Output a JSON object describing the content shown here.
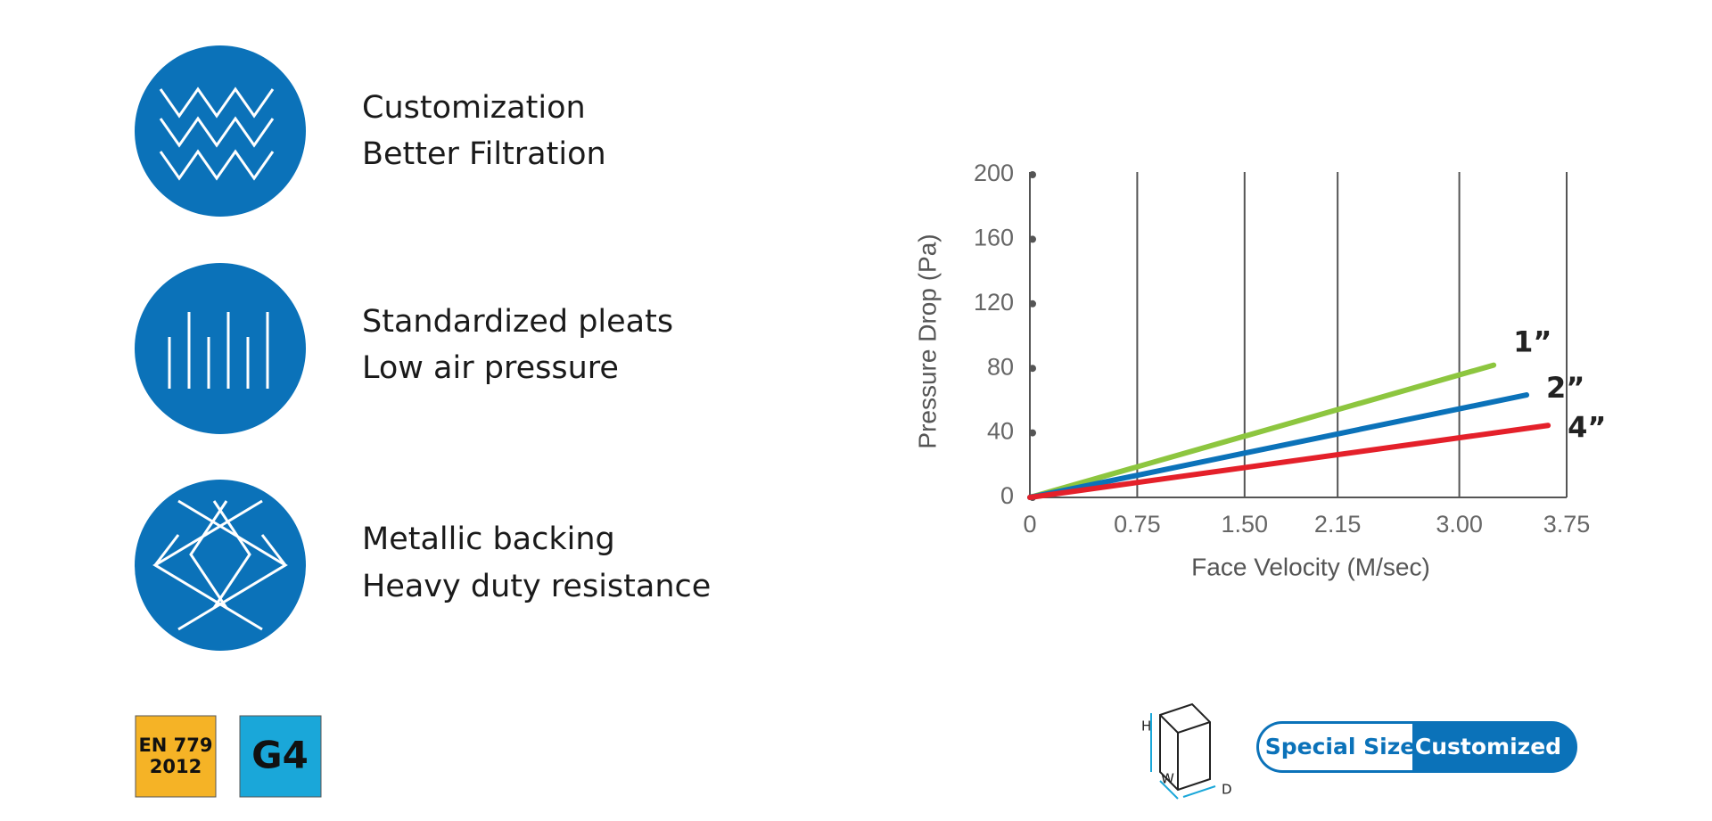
{
  "features": [
    {
      "title": "Customization",
      "subtitle": "Better Filtration"
    },
    {
      "title": "Standardized pleats",
      "subtitle": "Low air pressure"
    },
    {
      "title": "Metallic backing",
      "subtitle": "Heavy duty resistance"
    }
  ],
  "certifications": {
    "standard": [
      "EN 779",
      "2012"
    ],
    "grade": "G4"
  },
  "size": {
    "dimensions": [
      "H",
      "W",
      "D"
    ],
    "label": "Special Size",
    "value": "Customized"
  },
  "chart_data": {
    "type": "line",
    "xlabel": "Face Velocity (M/sec)",
    "ylabel": "Pressure Drop (Pa)",
    "xlim": [
      0,
      3.75
    ],
    "ylim": [
      0,
      200
    ],
    "xticks": [
      0,
      0.75,
      {
        "value": 1.5,
        "label": "1.50"
      },
      2.15,
      {
        "value": 3,
        "label": "3.00"
      },
      3.75
    ],
    "yticks": [
      0,
      40,
      80,
      120,
      160,
      200
    ],
    "grid": true,
    "series": [
      {
        "name": "1”",
        "color": "#8dc63f",
        "x": [
          0,
          3.24
        ],
        "values": [
          0,
          82
        ]
      },
      {
        "name": "2”",
        "color": "#0b72b9",
        "x": [
          0,
          3.47
        ],
        "values": [
          0,
          63.5
        ]
      },
      {
        "name": "4”",
        "color": "#e4202a",
        "x": [
          0,
          3.62
        ],
        "values": [
          0,
          44.6
        ]
      }
    ]
  }
}
